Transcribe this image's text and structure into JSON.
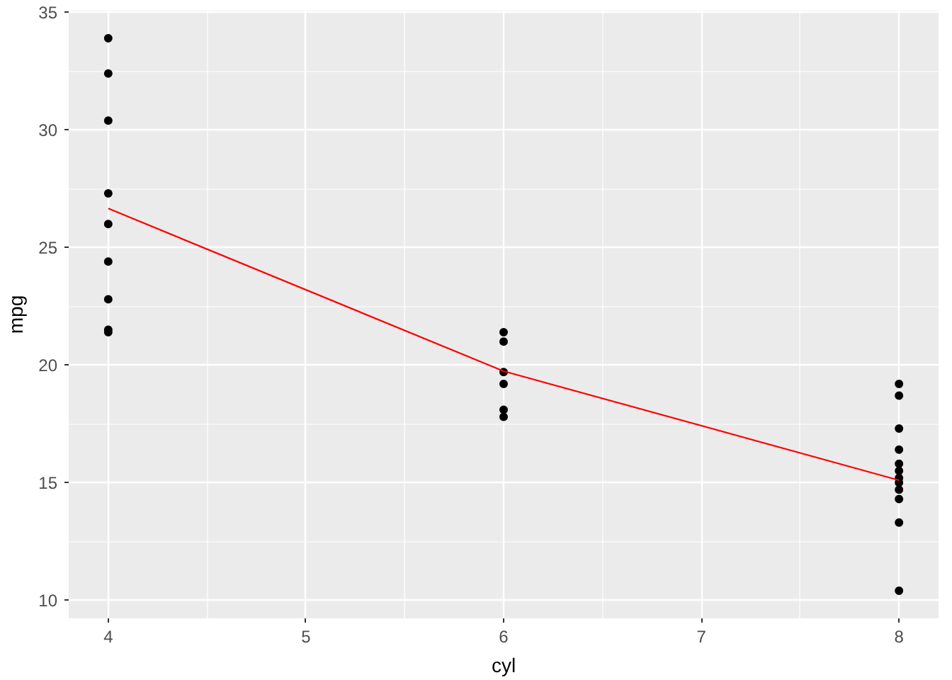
{
  "chart_data": {
    "type": "scatter",
    "xlabel": "cyl",
    "ylabel": "mpg",
    "xlim": [
      3.8,
      8.2
    ],
    "ylim": [
      9.225,
      35.075
    ],
    "xticks": [
      4,
      5,
      6,
      7,
      8
    ],
    "yticks": [
      10,
      15,
      20,
      25,
      30,
      35
    ],
    "grid": true,
    "marker": "circle",
    "series": [
      {
        "color": "#000000",
        "x": [
          4,
          4,
          4,
          4,
          4,
          4,
          4,
          4,
          4,
          6,
          6,
          6,
          6,
          6,
          6,
          8,
          8,
          8,
          8,
          8,
          8,
          8,
          8,
          8,
          8,
          8,
          8
        ],
        "values": [
          33.9,
          32.4,
          30.4,
          27.3,
          26.0,
          24.4,
          22.8,
          21.5,
          21.4,
          21.4,
          21.0,
          19.7,
          19.2,
          18.1,
          17.8,
          19.2,
          18.7,
          17.3,
          16.4,
          15.8,
          15.5,
          15.2,
          15.0,
          14.7,
          14.3,
          13.3,
          10.4
        ]
      },
      {
        "type": "line",
        "color": "#ff0000",
        "marker": "none",
        "line_style": "solid",
        "x": [
          4,
          6,
          8
        ],
        "values": [
          26.66,
          19.74,
          15.1
        ]
      }
    ]
  }
}
